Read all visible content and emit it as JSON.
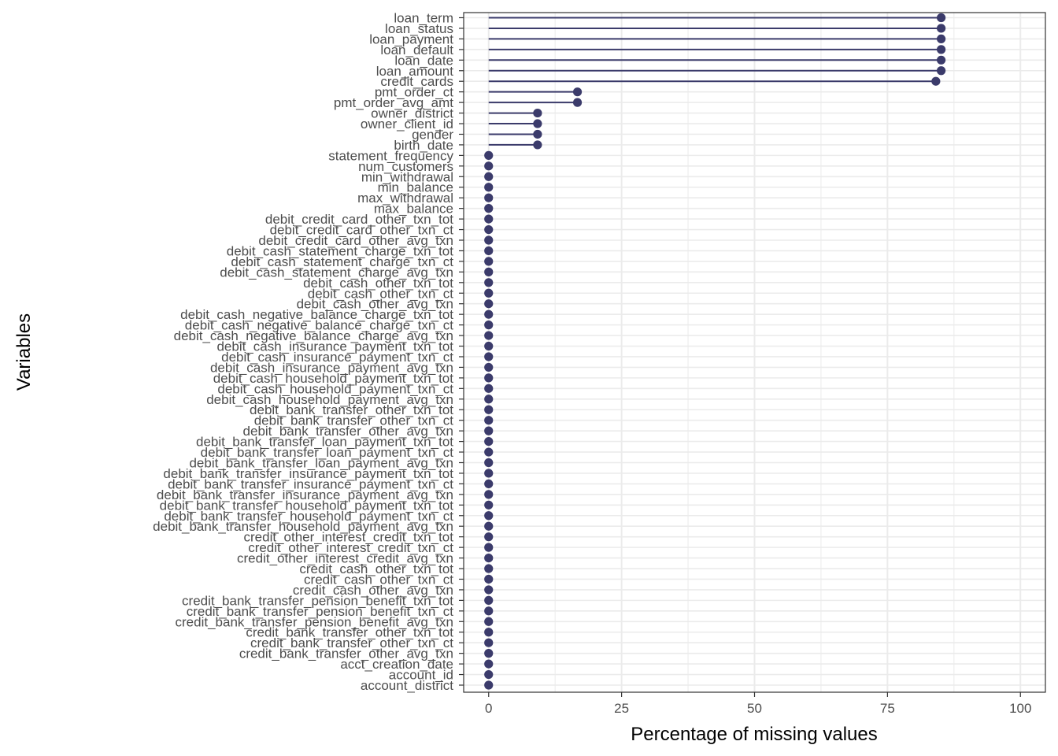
{
  "chart_data": {
    "type": "lollipop",
    "xlabel": "Percentage of missing values",
    "ylabel": "Variables",
    "xlim": [
      -4.7,
      104.7
    ],
    "x_ticks": [
      0,
      25,
      50,
      75,
      100
    ],
    "grid": true,
    "colors": {
      "marker": "#3b3b6b",
      "grid": "#ebebeb",
      "panel_border": "#333333"
    },
    "categories": [
      "loan_term",
      "loan_status",
      "loan_payment",
      "loan_default",
      "loan_date",
      "loan_amount",
      "credit_cards",
      "pmt_order_ct",
      "pmt_order_avg_amt",
      "owner_district",
      "owner_client_id",
      "gender",
      "birth_date",
      "statement_frequency",
      "num_customers",
      "min_withdrawal",
      "min_balance",
      "max_withdrawal",
      "max_balance",
      "debit_credit_card_other_txn_tot",
      "debit_credit_card_other_txn_ct",
      "debit_credit_card_other_avg_txn",
      "debit_cash_statement_charge_txn_tot",
      "debit_cash_statement_charge_txn_ct",
      "debit_cash_statement_charge_avg_txn",
      "debit_cash_other_txn_tot",
      "debit_cash_other_txn_ct",
      "debit_cash_other_avg_txn",
      "debit_cash_negative_balance_charge_txn_tot",
      "debit_cash_negative_balance_charge_txn_ct",
      "debit_cash_negative_balance_charge_avg_txn",
      "debit_cash_insurance_payment_txn_tot",
      "debit_cash_insurance_payment_txn_ct",
      "debit_cash_insurance_payment_avg_txn",
      "debit_cash_household_payment_txn_tot",
      "debit_cash_household_payment_txn_ct",
      "debit_cash_household_payment_avg_txn",
      "debit_bank_transfer_other_txn_tot",
      "debit_bank_transfer_other_txn_ct",
      "debit_bank_transfer_other_avg_txn",
      "debit_bank_transfer_loan_payment_txn_tot",
      "debit_bank_transfer_loan_payment_txn_ct",
      "debit_bank_transfer_loan_payment_avg_txn",
      "debit_bank_transfer_insurance_payment_txn_tot",
      "debit_bank_transfer_insurance_payment_txn_ct",
      "debit_bank_transfer_insurance_payment_avg_txn",
      "debit_bank_transfer_household_payment_txn_tot",
      "debit_bank_transfer_household_payment_txn_ct",
      "debit_bank_transfer_household_payment_avg_txn",
      "credit_other_interest_credit_txn_tot",
      "credit_other_interest_credit_txn_ct",
      "credit_other_interest_credit_avg_txn",
      "credit_cash_other_txn_tot",
      "credit_cash_other_txn_ct",
      "credit_cash_other_avg_txn",
      "credit_bank_transfer_pension_benefit_txn_tot",
      "credit_bank_transfer_pension_benefit_txn_ct",
      "credit_bank_transfer_pension_benefit_avg_txn",
      "credit_bank_transfer_other_txn_tot",
      "credit_bank_transfer_other_txn_ct",
      "credit_bank_transfer_other_avg_txn",
      "acct_creation_date",
      "account_id",
      "account_district"
    ],
    "values": [
      85.1,
      85.1,
      85.1,
      85.1,
      85.1,
      85.1,
      84.1,
      16.7,
      16.7,
      9.2,
      9.2,
      9.2,
      9.2,
      0,
      0,
      0,
      0,
      0,
      0,
      0,
      0,
      0,
      0,
      0,
      0,
      0,
      0,
      0,
      0,
      0,
      0,
      0,
      0,
      0,
      0,
      0,
      0,
      0,
      0,
      0,
      0,
      0,
      0,
      0,
      0,
      0,
      0,
      0,
      0,
      0,
      0,
      0,
      0,
      0,
      0,
      0,
      0,
      0,
      0,
      0,
      0,
      0,
      0,
      0
    ]
  }
}
